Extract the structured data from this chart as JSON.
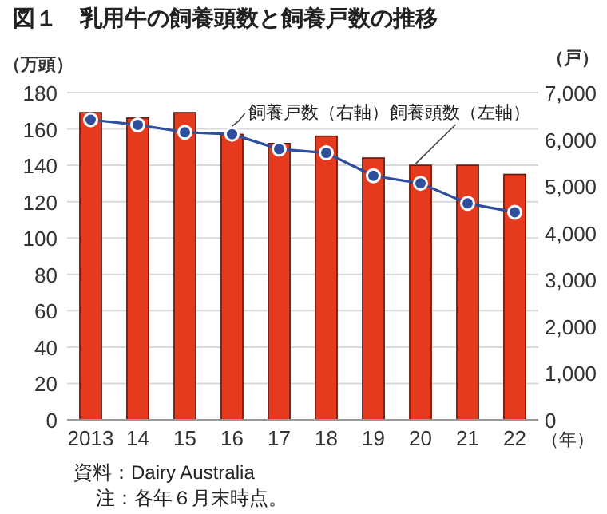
{
  "chart_data": {
    "type": "bar",
    "title": "図１　乳用牛の飼養頭数と飼養戸数の推移",
    "categories": [
      "2013",
      "14",
      "15",
      "16",
      "17",
      "18",
      "19",
      "20",
      "21",
      "22"
    ],
    "xlabel": "（年）",
    "ylabel": "（万頭）",
    "y2label": "（戸）",
    "series": [
      {
        "name": "飼養頭数（左軸）",
        "color": "#e63a1e",
        "values": [
          169,
          166,
          169,
          157,
          152,
          156,
          144,
          140,
          140,
          135
        ]
      },
      {
        "name": "飼養戸数（右軸）",
        "type": "line",
        "axis": "y2",
        "color": "#2f4f9e",
        "marker": "circle",
        "values": [
          6420,
          6310,
          6150,
          6110,
          5790,
          5710,
          5220,
          5060,
          4630,
          4440
        ]
      }
    ],
    "ylim": [
      0,
      180
    ],
    "yticks": [
      0,
      20,
      40,
      60,
      80,
      100,
      120,
      140,
      160,
      180
    ],
    "y2lim": [
      0,
      7000
    ],
    "y2ticks": [
      {
        "value": 0,
        "label": "0"
      },
      {
        "value": 1000,
        "label": "1,000"
      },
      {
        "value": 2000,
        "label": "2,000"
      },
      {
        "value": 3000,
        "label": "3,000"
      },
      {
        "value": 4000,
        "label": "4,000"
      },
      {
        "value": 5000,
        "label": "5,000"
      },
      {
        "value": 6000,
        "label": "6,000"
      },
      {
        "value": 7000,
        "label": "7,000"
      }
    ],
    "grid": "y",
    "annotations": [
      "資料：Dairy Australia",
      "注：各年６月末時点。"
    ]
  }
}
